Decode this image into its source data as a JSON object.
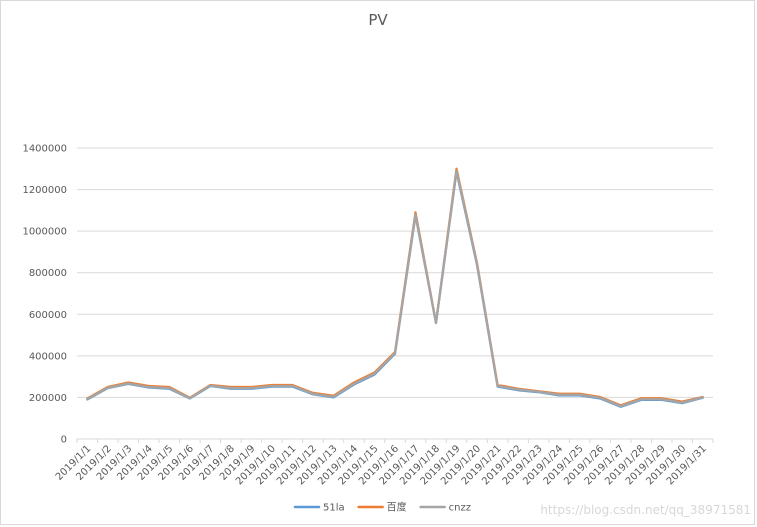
{
  "chart_data": {
    "type": "line",
    "title": "PV",
    "xlabel": "",
    "ylabel": "",
    "ylim": [
      0,
      1400000
    ],
    "yticks": [
      0,
      200000,
      400000,
      600000,
      800000,
      1000000,
      1200000,
      1400000
    ],
    "grid": true,
    "legend_position": "bottom",
    "categories": [
      "2019/1/1",
      "2019/1/2",
      "2019/1/3",
      "2019/1/4",
      "2019/1/5",
      "2019/1/6",
      "2019/1/7",
      "2019/1/8",
      "2019/1/9",
      "2019/1/10",
      "2019/1/11",
      "2019/1/12",
      "2019/1/13",
      "2019/1/14",
      "2019/1/15",
      "2019/1/16",
      "2019/1/17",
      "2019/1/18",
      "2019/1/19",
      "2019/1/20",
      "2019/1/21",
      "2019/1/22",
      "2019/1/23",
      "2019/1/24",
      "2019/1/25",
      "2019/1/26",
      "2019/1/27",
      "2019/1/28",
      "2019/1/29",
      "2019/1/30",
      "2019/1/31"
    ],
    "series": [
      {
        "name": "51la",
        "color": "#5b9bd5",
        "values": [
          190000,
          245000,
          265000,
          248000,
          242000,
          195000,
          255000,
          242000,
          242000,
          252000,
          252000,
          215000,
          200000,
          262000,
          310000,
          410000,
          1075000,
          558000,
          1285000,
          835000,
          252000,
          235000,
          225000,
          210000,
          210000,
          195000,
          155000,
          188000,
          188000,
          172000,
          198000
        ]
      },
      {
        "name": "百度",
        "color": "#ed7d31",
        "values": [
          195000,
          250000,
          272000,
          255000,
          250000,
          198000,
          260000,
          250000,
          250000,
          260000,
          260000,
          222000,
          208000,
          272000,
          320000,
          418000,
          1090000,
          560000,
          1300000,
          845000,
          260000,
          242000,
          230000,
          218000,
          218000,
          202000,
          162000,
          196000,
          196000,
          180000,
          202000
        ]
      },
      {
        "name": "cnzz",
        "color": "#a5a5a5",
        "values": [
          192000,
          246000,
          267000,
          250000,
          245000,
          196000,
          257000,
          245000,
          245000,
          255000,
          255000,
          218000,
          203000,
          266000,
          314000,
          413000,
          1080000,
          559000,
          1290000,
          840000,
          255000,
          238000,
          227000,
          213000,
          213000,
          198000,
          158000,
          191000,
          191000,
          175000,
          200000
        ]
      }
    ]
  },
  "watermark": "https://blog.csdn.net/qq_38971581"
}
